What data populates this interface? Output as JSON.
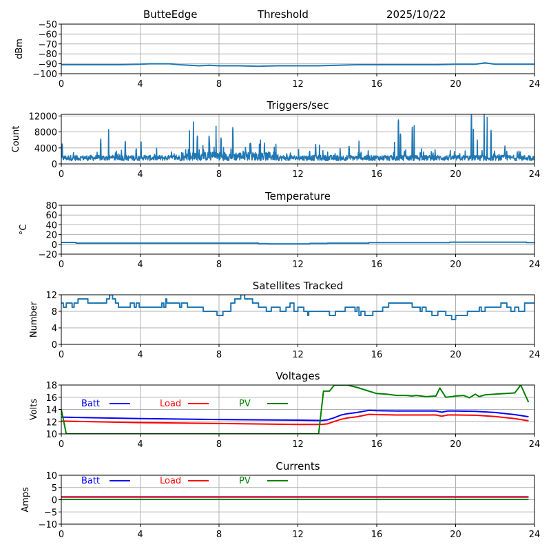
{
  "header": {
    "station": "ButteEdge",
    "mode": "Threshold",
    "date": "2025/10/22"
  },
  "chart_data": [
    {
      "id": "rssi",
      "type": "line",
      "title": "",
      "xlabel": "",
      "ylabel": "dBm",
      "xlim": [
        0,
        24
      ],
      "ylim": [
        -100,
        -50
      ],
      "xticks": [
        0,
        4,
        8,
        12,
        16,
        20,
        24
      ],
      "xtick_labels": [
        "0",
        "4",
        "8",
        "12",
        "16",
        "20",
        "24"
      ],
      "yticks": [
        -50,
        -60,
        -70,
        -80,
        -90,
        -100
      ],
      "ytick_labels": [
        "−50",
        "−60",
        "−70",
        "−80",
        "−90",
        "−100"
      ],
      "grid": true,
      "series": [
        {
          "name": "dBm",
          "color": "#1f77b4",
          "x": [
            0,
            1,
            2,
            3,
            4,
            4.5,
            5,
            5.5,
            6,
            6.5,
            7,
            7.5,
            8,
            9,
            10,
            11,
            12,
            13,
            14,
            15,
            16,
            17,
            18,
            19,
            20,
            21,
            21.5,
            22,
            23,
            24
          ],
          "y": [
            -91,
            -91,
            -91,
            -91,
            -90.5,
            -90,
            -90,
            -90,
            -91,
            -91.5,
            -92,
            -91.5,
            -92,
            -92,
            -92.5,
            -92,
            -92,
            -92,
            -91.5,
            -91,
            -91,
            -91,
            -91,
            -91,
            -90.5,
            -90.5,
            -89,
            -90.5,
            -90.5,
            -90.5
          ]
        }
      ]
    },
    {
      "id": "triggers",
      "type": "line",
      "title": "Triggers/sec",
      "xlabel": "",
      "ylabel": "Count",
      "xlim": [
        0,
        24
      ],
      "ylim": [
        0,
        12400
      ],
      "xticks": [
        0,
        4,
        8,
        12,
        16,
        20,
        24
      ],
      "xtick_labels": [
        "0",
        "4",
        "8",
        "12",
        "16",
        "20",
        "24"
      ],
      "yticks": [
        0,
        4000,
        8000,
        12000
      ],
      "ytick_labels": [
        "0",
        "4000",
        "8000",
        "12000"
      ],
      "grid": true,
      "series": [
        {
          "name": "Count",
          "color": "#1f77b4",
          "baseline": 1500,
          "noise": 1200,
          "spikes": [
            [
              0.05,
              5000
            ],
            [
              2.0,
              6200
            ],
            [
              2.4,
              8600
            ],
            [
              3.25,
              5600
            ],
            [
              3.8,
              3800
            ],
            [
              4.05,
              5500
            ],
            [
              6.5,
              8300
            ],
            [
              6.7,
              10500
            ],
            [
              6.9,
              7000
            ],
            [
              7.5,
              7000
            ],
            [
              7.85,
              9400
            ],
            [
              8.1,
              6500
            ],
            [
              8.7,
              9100
            ],
            [
              9.6,
              5200
            ],
            [
              10.1,
              6000
            ],
            [
              10.8,
              4200
            ],
            [
              12.9,
              4900
            ],
            [
              13.1,
              4700
            ],
            [
              14.6,
              4400
            ],
            [
              15.1,
              5700
            ],
            [
              16.9,
              5400
            ],
            [
              17.1,
              11000
            ],
            [
              17.2,
              7500
            ],
            [
              17.8,
              9200
            ],
            [
              17.9,
              9600
            ],
            [
              20.8,
              12400
            ],
            [
              20.9,
              8700
            ],
            [
              21.1,
              6000
            ],
            [
              21.45,
              12400
            ],
            [
              21.6,
              11600
            ],
            [
              21.8,
              8400
            ],
            [
              22.5,
              4500
            ]
          ]
        }
      ]
    },
    {
      "id": "temperature",
      "type": "line",
      "title": "Temperature",
      "xlabel": "",
      "ylabel": "°C",
      "xlim": [
        0,
        24
      ],
      "ylim": [
        -20,
        80
      ],
      "xticks": [
        0,
        4,
        8,
        12,
        16,
        20,
        24
      ],
      "xtick_labels": [
        "0",
        "4",
        "8",
        "12",
        "16",
        "20",
        "24"
      ],
      "yticks": [
        80,
        60,
        40,
        20,
        0,
        -20
      ],
      "ytick_labels": [
        "80",
        "60",
        "40",
        "20",
        "0",
        "−20"
      ],
      "grid": true,
      "series": [
        {
          "name": "Temp",
          "color": "#1f77b4",
          "x": [
            0,
            0.75,
            0.75,
            10.0,
            10.0,
            10.5,
            10.5,
            12.6,
            12.6,
            13.5,
            13.5,
            15.6,
            15.6,
            19.7,
            19.7,
            23.6,
            23.6,
            24
          ],
          "y": [
            4,
            4,
            2.5,
            2.5,
            1.5,
            1.5,
            1,
            1,
            2,
            2,
            2.5,
            2.5,
            3.5,
            3.5,
            4.5,
            4.5,
            3.5,
            3.5
          ]
        }
      ]
    },
    {
      "id": "satellites",
      "type": "line",
      "title": "Satellites Tracked",
      "xlabel": "",
      "ylabel": "Number",
      "xlim": [
        0,
        24
      ],
      "ylim": [
        0,
        12
      ],
      "xticks": [
        0,
        4,
        8,
        12,
        16,
        20,
        24
      ],
      "xtick_labels": [
        "0",
        "4",
        "8",
        "12",
        "16",
        "20",
        "24"
      ],
      "yticks": [
        0,
        4,
        8,
        12
      ],
      "ytick_labels": [
        "0",
        "4",
        "8",
        "12"
      ],
      "grid": true,
      "series": [
        {
          "name": "Satellites",
          "color": "#1f77b4",
          "step": true,
          "x": [
            0,
            0.1,
            0.25,
            0.55,
            0.65,
            0.85,
            1.35,
            2.3,
            2.45,
            2.6,
            2.75,
            2.9,
            3.5,
            3.7,
            3.8,
            3.95,
            4.05,
            5.1,
            5.2,
            5.3,
            5.35,
            6.0,
            6.1,
            6.4,
            6.5,
            7.2,
            7.9,
            8.2,
            8.6,
            8.8,
            9.1,
            9.3,
            9.7,
            10.0,
            10.4,
            10.65,
            11.1,
            11.4,
            11.6,
            11.8,
            12.0,
            12.3,
            12.5,
            12.55,
            13.6,
            13.9,
            14.4,
            14.9,
            15.0,
            15.1,
            15.2,
            15.4,
            15.8,
            16.3,
            16.6,
            17.0,
            17.8,
            18.2,
            18.3,
            18.5,
            18.8,
            19.1,
            19.5,
            19.8,
            20.0,
            20.6,
            21.2,
            21.3,
            21.5,
            22.3,
            22.6,
            22.8,
            23.0,
            23.2,
            23.5,
            23.8,
            24
          ],
          "y": [
            10,
            9,
            10,
            9,
            10,
            11,
            10,
            11,
            12,
            11,
            10,
            9,
            10,
            9,
            10,
            9,
            9,
            10,
            9,
            11,
            10,
            9,
            10,
            9,
            9,
            8,
            7,
            8,
            10,
            11,
            12,
            11,
            10,
            9,
            8,
            9,
            8,
            9,
            10,
            8,
            9,
            8,
            7,
            8,
            7,
            8,
            9,
            8,
            9,
            7,
            8,
            7,
            8,
            9,
            10,
            10,
            9,
            8,
            9,
            8,
            7,
            8,
            7,
            6,
            7,
            8,
            9,
            8,
            9,
            10,
            9,
            8,
            9,
            8,
            10,
            10,
            10
          ]
        }
      ]
    },
    {
      "id": "voltages",
      "type": "line",
      "title": "Voltages",
      "xlabel": "",
      "ylabel": "Volts",
      "xlim": [
        0,
        24
      ],
      "ylim": [
        10,
        18
      ],
      "xticks": [
        0,
        4,
        8,
        12,
        16,
        20,
        24
      ],
      "xtick_labels": [
        "0",
        "4",
        "8",
        "12",
        "16",
        "20",
        "24"
      ],
      "yticks": [
        10,
        12,
        14,
        16,
        18
      ],
      "ytick_labels": [
        "10",
        "12",
        "14",
        "16",
        "18"
      ],
      "grid": true,
      "legend": "top-left-inline",
      "series": [
        {
          "name": "Batt",
          "color": "#0000ff",
          "x": [
            0,
            4,
            8,
            12,
            13.2,
            13.5,
            13.8,
            14.2,
            14.5,
            15.0,
            15.6,
            16,
            17,
            18,
            19,
            19.3,
            19.6,
            20,
            21,
            22,
            23,
            23.7
          ],
          "y": [
            12.75,
            12.5,
            12.35,
            12.25,
            12.2,
            12.3,
            12.6,
            13.1,
            13.3,
            13.5,
            13.85,
            13.8,
            13.75,
            13.75,
            13.75,
            13.55,
            13.75,
            13.75,
            13.7,
            13.5,
            13.15,
            12.8
          ]
        },
        {
          "name": "Load",
          "color": "#ff0000",
          "x": [
            0,
            4,
            8,
            12,
            13.2,
            13.5,
            13.8,
            14.2,
            14.5,
            15.0,
            15.6,
            16,
            17,
            18,
            19,
            19.3,
            19.6,
            20,
            21,
            22,
            23,
            23.7
          ],
          "y": [
            12.1,
            11.85,
            11.7,
            11.55,
            11.55,
            11.65,
            12.0,
            12.4,
            12.6,
            12.8,
            13.2,
            13.15,
            13.1,
            13.1,
            13.1,
            12.9,
            13.1,
            13.1,
            13.05,
            12.85,
            12.5,
            12.15
          ]
        },
        {
          "name": "PV",
          "color": "#008000",
          "x": [
            0,
            0.25,
            13.05,
            13.3,
            13.6,
            13.85,
            14.5,
            15.0,
            15.5,
            16.0,
            16.5,
            17.0,
            17.5,
            17.8,
            18.0,
            18.5,
            19.0,
            19.2,
            19.5,
            19.8,
            20.0,
            20.4,
            20.7,
            21.0,
            21.2,
            21.5,
            22.0,
            22.5,
            23.0,
            23.3,
            23.7
          ],
          "y": [
            14.0,
            10.0,
            10.0,
            17.0,
            17.0,
            18.0,
            18.0,
            17.6,
            17.1,
            16.6,
            16.5,
            16.3,
            16.3,
            16.2,
            16.3,
            16.1,
            16.2,
            17.5,
            16.0,
            16.1,
            16.2,
            16.3,
            15.9,
            16.5,
            16.1,
            16.4,
            16.5,
            16.6,
            16.7,
            18.0,
            15.2
          ]
        }
      ]
    },
    {
      "id": "currents",
      "type": "line",
      "title": "Currents",
      "xlabel": "",
      "ylabel": "Amps",
      "xlim": [
        0,
        24
      ],
      "ylim": [
        -10,
        10
      ],
      "xticks": [
        0,
        4,
        8,
        12,
        16,
        20,
        24
      ],
      "xtick_labels": [
        "0",
        "4",
        "8",
        "12",
        "16",
        "20",
        "24"
      ],
      "yticks": [
        10,
        5,
        0,
        -5,
        -10
      ],
      "ytick_labels": [
        "10",
        "5",
        "0",
        "−5",
        "−10"
      ],
      "grid": true,
      "legend": "top-left-inline",
      "series": [
        {
          "name": "Batt",
          "color": "#0000ff",
          "x": [
            0,
            23.7
          ],
          "y": [
            1.1,
            1.1
          ]
        },
        {
          "name": "Load",
          "color": "#ff0000",
          "x": [
            0,
            23.7
          ],
          "y": [
            1.2,
            1.2
          ]
        },
        {
          "name": "PV",
          "color": "#008000",
          "x": [
            0,
            23.7
          ],
          "y": [
            0.1,
            0.1
          ]
        }
      ]
    }
  ]
}
